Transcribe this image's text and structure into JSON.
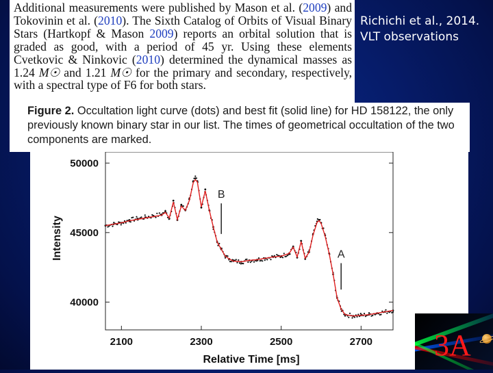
{
  "paper_excerpt": {
    "p1": "Additional measurements were published by Mason et al. (",
    "ref1": "2009",
    "p2": ") and Tokovinin et al. (",
    "ref2": "2010",
    "p3": "). The Sixth Catalog of Orbits of Visual Binary Stars (Hartkopf & Mason ",
    "ref3": "2009",
    "p4": ") reports an orbital solution that is graded as good, with a period of 45 yr. Using these elements Cvetkovic & Ninkovic (",
    "ref4": "2010",
    "p5": ") determined the dynamical masses as 1.24 ",
    "mass_unit_1": "M☉",
    "p6": " and 1.21 ",
    "mass_unit_2": "M☉",
    "p7": " for the primary and secondary, respectively, with a spectral type of F6 for both stars.",
    "link_color": "#1f3fbf"
  },
  "figure_caption": {
    "label": "Figure 2.",
    "text": " Occultation light curve (dots) and best fit (solid line) for HD 158122, the only previously known binary star in our list. The times of geometrical occultation of the two components are marked."
  },
  "side_note": {
    "line1": "Richichi et al., 2014.",
    "line2": "VLT observations"
  },
  "logo": {
    "text": "3A",
    "icon": "observatory-logo-icon"
  },
  "chart_data": {
    "type": "scatter",
    "title": "",
    "xlabel": "Relative Time [ms]",
    "ylabel": "Intensity",
    "xlim": [
      2060,
      2780
    ],
    "ylim": [
      38000,
      50800
    ],
    "x_ticks": [
      2100,
      2300,
      2500,
      2700
    ],
    "y_ticks": [
      40000,
      45000,
      50000
    ],
    "x_tick_labels": [
      "2100",
      "2300",
      "2500",
      "2700"
    ],
    "y_tick_labels": [
      "40000",
      "45000",
      "50000"
    ],
    "grid": false,
    "series": [
      {
        "kind": "points",
        "color": "#111111",
        "x": [
          2060,
          2080,
          2100,
          2120,
          2140,
          2160,
          2180,
          2200,
          2210,
          2220,
          2230,
          2240,
          2250,
          2260,
          2270,
          2280,
          2285,
          2290,
          2300,
          2310,
          2320,
          2330,
          2340,
          2350,
          2360,
          2370,
          2380,
          2400,
          2420,
          2440,
          2460,
          2480,
          2500,
          2520,
          2530,
          2540,
          2550,
          2560,
          2570,
          2580,
          2590,
          2595,
          2600,
          2610,
          2620,
          2630,
          2640,
          2650,
          2660,
          2680,
          2700,
          2720,
          2740,
          2760,
          2780
        ],
        "y": [
          45500,
          45600,
          45700,
          45900,
          46000,
          46100,
          46200,
          46300,
          46500,
          46000,
          47300,
          45900,
          47000,
          46600,
          47400,
          48700,
          48900,
          48700,
          46800,
          48100,
          46600,
          45400,
          44300,
          43800,
          43300,
          43100,
          42950,
          42900,
          43000,
          43050,
          43150,
          43250,
          43300,
          43500,
          44000,
          43200,
          44400,
          43100,
          43600,
          44900,
          45800,
          45900,
          45700,
          44800,
          43500,
          42000,
          40300,
          39500,
          39100,
          39000,
          39050,
          39100,
          39200,
          39300,
          39400
        ]
      },
      {
        "kind": "fit",
        "color": "#e02020",
        "x": [
          2060,
          2080,
          2100,
          2120,
          2140,
          2160,
          2180,
          2200,
          2210,
          2220,
          2230,
          2240,
          2250,
          2260,
          2270,
          2280,
          2285,
          2290,
          2300,
          2310,
          2320,
          2330,
          2340,
          2350,
          2360,
          2370,
          2380,
          2400,
          2420,
          2440,
          2460,
          2480,
          2500,
          2520,
          2530,
          2540,
          2550,
          2560,
          2570,
          2580,
          2590,
          2595,
          2600,
          2610,
          2620,
          2630,
          2640,
          2650,
          2660,
          2680,
          2700,
          2720,
          2740,
          2760,
          2780
        ],
        "y": [
          45500,
          45600,
          45700,
          45850,
          45950,
          46050,
          46150,
          46250,
          46450,
          46050,
          47200,
          45950,
          46900,
          46600,
          47300,
          48600,
          48800,
          48650,
          46850,
          48000,
          46600,
          45400,
          44300,
          43800,
          43300,
          43100,
          42950,
          42900,
          43000,
          43050,
          43150,
          43250,
          43300,
          43500,
          43950,
          43250,
          44350,
          43150,
          43600,
          44850,
          45750,
          45850,
          45650,
          44750,
          43500,
          42000,
          40300,
          39500,
          39100,
          39000,
          39050,
          39100,
          39200,
          39300,
          39400
        ]
      }
    ],
    "annotations": [
      {
        "label": "B",
        "x": 2350,
        "y_from": 44900,
        "y_to": 47100
      },
      {
        "label": "A",
        "x": 2650,
        "y_from": 40900,
        "y_to": 42800
      }
    ]
  }
}
